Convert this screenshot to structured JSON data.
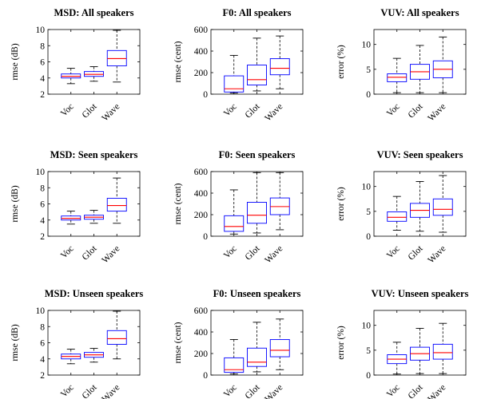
{
  "chart_data": [
    {
      "type": "box",
      "title": "MSD: All speakers",
      "ylabel": "rmse (dB)",
      "ylim": [
        2,
        10
      ],
      "yticks": [
        2,
        4,
        6,
        8,
        10
      ],
      "categories": [
        "Voc",
        "Glot",
        "Wave"
      ],
      "boxes": [
        {
          "min": 3.3,
          "q1": 4.0,
          "median": 4.2,
          "q3": 4.5,
          "max": 5.2
        },
        {
          "min": 3.6,
          "q1": 4.2,
          "median": 4.45,
          "q3": 4.8,
          "max": 5.4
        },
        {
          "min": 3.5,
          "q1": 5.5,
          "median": 6.4,
          "q3": 7.4,
          "max": 9.9
        }
      ]
    },
    {
      "type": "box",
      "title": "F0: All speakers",
      "ylabel": "rmse (cent)",
      "ylim": [
        0,
        600
      ],
      "yticks": [
        0,
        200,
        400,
        600
      ],
      "categories": [
        "Voc",
        "Glot",
        "Wave"
      ],
      "boxes": [
        {
          "min": 10,
          "q1": 20,
          "median": 50,
          "q3": 170,
          "max": 360
        },
        {
          "min": 30,
          "q1": 85,
          "median": 135,
          "q3": 270,
          "max": 520
        },
        {
          "min": 50,
          "q1": 180,
          "median": 240,
          "q3": 330,
          "max": 540
        }
      ]
    },
    {
      "type": "box",
      "title": "VUV: All speakers",
      "ylabel": "error (%)",
      "ylim": [
        0,
        13
      ],
      "yticks": [
        0,
        5,
        10
      ],
      "categories": [
        "Voc",
        "Glot",
        "Wave"
      ],
      "boxes": [
        {
          "min": 0.3,
          "q1": 2.5,
          "median": 3.4,
          "q3": 4.1,
          "max": 7.2
        },
        {
          "min": 0.3,
          "q1": 3.0,
          "median": 4.5,
          "q3": 6.0,
          "max": 9.8
        },
        {
          "min": 0.3,
          "q1": 3.3,
          "median": 5.0,
          "q3": 6.7,
          "max": 11.5
        }
      ]
    },
    {
      "type": "box",
      "title": "MSD: Seen speakers",
      "ylabel": "rmse (dB)",
      "ylim": [
        2,
        10
      ],
      "yticks": [
        2,
        4,
        6,
        8,
        10
      ],
      "categories": [
        "Voc",
        "Glot",
        "Wave"
      ],
      "boxes": [
        {
          "min": 3.5,
          "q1": 4.0,
          "median": 4.2,
          "q3": 4.5,
          "max": 5.1
        },
        {
          "min": 3.6,
          "q1": 4.1,
          "median": 4.35,
          "q3": 4.6,
          "max": 5.2
        },
        {
          "min": 3.6,
          "q1": 5.1,
          "median": 5.8,
          "q3": 6.7,
          "max": 9.2
        }
      ]
    },
    {
      "type": "box",
      "title": "F0: Seen speakers",
      "ylabel": "rmse (cent)",
      "ylim": [
        0,
        600
      ],
      "yticks": [
        0,
        200,
        400,
        600
      ],
      "categories": [
        "Voc",
        "Glot",
        "Wave"
      ],
      "boxes": [
        {
          "min": 20,
          "q1": 45,
          "median": 90,
          "q3": 190,
          "max": 430
        },
        {
          "min": 30,
          "q1": 120,
          "median": 195,
          "q3": 315,
          "max": 590
        },
        {
          "min": 60,
          "q1": 200,
          "median": 275,
          "q3": 355,
          "max": 590
        }
      ]
    },
    {
      "type": "box",
      "title": "VUV: Seen speakers",
      "ylabel": "error (%)",
      "ylim": [
        0,
        13
      ],
      "yticks": [
        0,
        5,
        10
      ],
      "categories": [
        "Voc",
        "Glot",
        "Wave"
      ],
      "boxes": [
        {
          "min": 1.2,
          "q1": 3.0,
          "median": 3.8,
          "q3": 4.9,
          "max": 8.0
        },
        {
          "min": 1.0,
          "q1": 3.8,
          "median": 5.2,
          "q3": 6.6,
          "max": 11.0
        },
        {
          "min": 0.8,
          "q1": 4.2,
          "median": 5.4,
          "q3": 7.5,
          "max": 12.2
        }
      ]
    },
    {
      "type": "box",
      "title": "MSD: Unseen speakers",
      "ylabel": "rmse (dB)",
      "ylim": [
        2,
        10
      ],
      "yticks": [
        2,
        4,
        6,
        8,
        10
      ],
      "categories": [
        "Voc",
        "Glot",
        "Wave"
      ],
      "boxes": [
        {
          "min": 3.4,
          "q1": 4.0,
          "median": 4.3,
          "q3": 4.6,
          "max": 5.2
        },
        {
          "min": 3.6,
          "q1": 4.2,
          "median": 4.5,
          "q3": 4.8,
          "max": 5.3
        },
        {
          "min": 4.0,
          "q1": 5.8,
          "median": 6.5,
          "q3": 7.5,
          "max": 9.9
        }
      ]
    },
    {
      "type": "box",
      "title": "F0: Unseen speakers",
      "ylabel": "rmse (cent)",
      "ylim": [
        0,
        600
      ],
      "yticks": [
        0,
        200,
        400,
        600
      ],
      "categories": [
        "Voc",
        "Glot",
        "Wave"
      ],
      "boxes": [
        {
          "min": 10,
          "q1": 25,
          "median": 50,
          "q3": 160,
          "max": 330
        },
        {
          "min": 30,
          "q1": 80,
          "median": 120,
          "q3": 250,
          "max": 490
        },
        {
          "min": 50,
          "q1": 170,
          "median": 230,
          "q3": 330,
          "max": 520
        }
      ]
    },
    {
      "type": "box",
      "title": "VUV: Unseen speakers",
      "ylabel": "error (%)",
      "ylim": [
        0,
        13
      ],
      "yticks": [
        0,
        5,
        10
      ],
      "categories": [
        "Voc",
        "Glot",
        "Wave"
      ],
      "boxes": [
        {
          "min": 0.2,
          "q1": 2.3,
          "median": 3.2,
          "q3": 4.1,
          "max": 6.6
        },
        {
          "min": 0.3,
          "q1": 3.0,
          "median": 4.3,
          "q3": 5.6,
          "max": 9.4
        },
        {
          "min": 0.3,
          "q1": 3.2,
          "median": 4.5,
          "q3": 6.2,
          "max": 10.4
        }
      ]
    }
  ],
  "colors": {
    "box": "#0000ff",
    "median": "#ff0000",
    "whisker": "#000000",
    "axis": "#000000"
  }
}
